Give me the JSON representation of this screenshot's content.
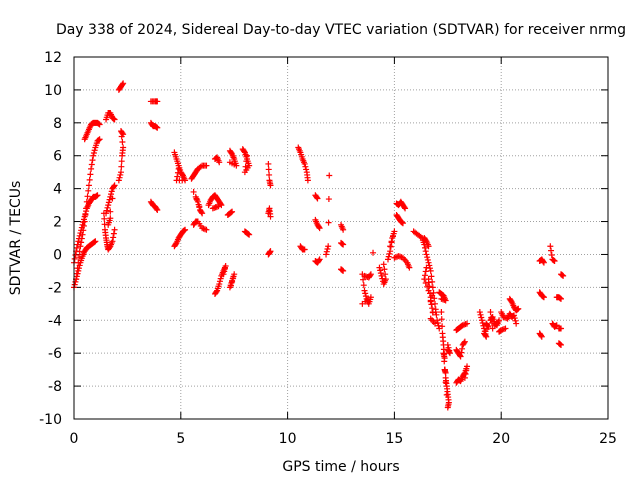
{
  "chart_data": {
    "type": "scatter",
    "title": "Day 338 of 2024, Sidereal Day-to-day VTEC variation (SDTVAR) for receiver nrmg",
    "xlabel": "GPS time / hours",
    "ylabel": "SDTVAR / TECUs",
    "xlim": [
      0,
      25
    ],
    "ylim": [
      -10,
      12
    ],
    "grid": true,
    "x_ticks": [
      0,
      5,
      10,
      15,
      20,
      25
    ],
    "y_ticks": [
      -10,
      -8,
      -6,
      -4,
      -2,
      0,
      2,
      4,
      6,
      8,
      10,
      12
    ],
    "marker": "+",
    "color": "#ff0000",
    "tracks": [
      [
        [
          0.0,
          -2.0
        ],
        [
          0.1,
          -1.5
        ],
        [
          0.2,
          -0.5
        ],
        [
          0.3,
          0.5
        ],
        [
          0.4,
          1.2
        ],
        [
          0.5,
          2.0
        ],
        [
          0.6,
          3.2
        ],
        [
          0.7,
          4.2
        ],
        [
          0.8,
          5.2
        ],
        [
          0.9,
          6.0
        ],
        [
          1.0,
          6.5
        ],
        [
          1.1,
          6.9
        ],
        [
          1.2,
          7.0
        ]
      ],
      [
        [
          0.0,
          -0.5
        ],
        [
          0.1,
          0.2
        ],
        [
          0.2,
          0.8
        ],
        [
          0.3,
          1.3
        ],
        [
          0.4,
          1.8
        ],
        [
          0.5,
          2.3
        ],
        [
          0.6,
          2.8
        ],
        [
          0.7,
          3.1
        ],
        [
          0.8,
          3.3
        ],
        [
          0.9,
          3.5
        ],
        [
          1.0,
          3.5
        ],
        [
          1.1,
          3.6
        ]
      ],
      [
        [
          0.1,
          -1.5
        ],
        [
          0.2,
          -1.0
        ],
        [
          0.3,
          -0.5
        ],
        [
          0.4,
          -0.1
        ],
        [
          0.5,
          0.2
        ],
        [
          0.6,
          0.4
        ],
        [
          0.7,
          0.5
        ],
        [
          0.8,
          0.6
        ],
        [
          0.9,
          0.7
        ],
        [
          1.0,
          0.8
        ]
      ],
      [
        [
          0.5,
          7.0
        ],
        [
          0.6,
          7.3
        ],
        [
          0.7,
          7.6
        ],
        [
          0.8,
          7.9
        ],
        [
          0.9,
          8.0
        ],
        [
          1.0,
          8.0
        ],
        [
          1.1,
          8.0
        ],
        [
          1.2,
          7.9
        ]
      ],
      [
        [
          1.4,
          2.5
        ],
        [
          1.45,
          1.5
        ],
        [
          1.5,
          1.0
        ],
        [
          1.55,
          0.6
        ],
        [
          1.6,
          0.3
        ],
        [
          1.7,
          0.5
        ],
        [
          1.8,
          0.8
        ],
        [
          1.9,
          1.5
        ]
      ],
      [
        [
          1.5,
          8.2
        ],
        [
          1.6,
          8.6
        ],
        [
          1.7,
          8.6
        ],
        [
          1.8,
          8.3
        ],
        [
          1.9,
          8.2
        ]
      ],
      [
        [
          1.5,
          2.5
        ],
        [
          1.6,
          3.0
        ],
        [
          1.7,
          3.5
        ],
        [
          1.8,
          4.0
        ],
        [
          1.9,
          4.2
        ],
        [
          1.6,
          1.8
        ],
        [
          1.7,
          2.2
        ]
      ],
      [
        [
          2.1,
          4.5
        ],
        [
          2.2,
          5.0
        ],
        [
          2.25,
          6.0
        ],
        [
          2.3,
          6.5
        ],
        [
          2.2,
          7.5
        ],
        [
          2.3,
          7.3
        ]
      ],
      [
        [
          2.1,
          10.0
        ],
        [
          2.2,
          10.2
        ],
        [
          2.3,
          10.4
        ]
      ],
      [
        [
          3.6,
          9.3
        ],
        [
          3.8,
          9.3
        ],
        [
          3.9,
          9.3
        ]
      ],
      [
        [
          3.6,
          8.0
        ],
        [
          3.7,
          7.8
        ],
        [
          3.8,
          7.8
        ],
        [
          3.9,
          7.7
        ]
      ],
      [
        [
          3.6,
          3.2
        ],
        [
          3.7,
          3.0
        ],
        [
          3.8,
          2.9
        ],
        [
          3.9,
          2.7
        ]
      ],
      [
        [
          4.7,
          6.2
        ],
        [
          4.8,
          5.8
        ],
        [
          4.9,
          5.4
        ],
        [
          5.0,
          5.0
        ],
        [
          5.1,
          4.8
        ],
        [
          5.2,
          4.5
        ],
        [
          4.8,
          4.5
        ],
        [
          4.9,
          5.2
        ]
      ],
      [
        [
          4.7,
          0.5
        ],
        [
          4.8,
          0.7
        ],
        [
          4.9,
          1.0
        ],
        [
          5.0,
          1.2
        ],
        [
          5.1,
          1.4
        ],
        [
          5.2,
          1.5
        ]
      ],
      [
        [
          5.5,
          4.6
        ],
        [
          5.6,
          4.8
        ],
        [
          5.7,
          5.0
        ],
        [
          5.8,
          5.2
        ],
        [
          6.0,
          5.4
        ],
        [
          6.2,
          5.4
        ]
      ],
      [
        [
          5.7,
          3.5
        ],
        [
          5.8,
          3.2
        ],
        [
          5.9,
          2.7
        ],
        [
          6.0,
          2.5
        ],
        [
          5.6,
          3.8
        ]
      ],
      [
        [
          5.6,
          1.8
        ],
        [
          5.7,
          2.0
        ],
        [
          5.8,
          2.0
        ],
        [
          6.0,
          1.6
        ],
        [
          6.2,
          1.5
        ]
      ],
      [
        [
          6.3,
          3.0
        ],
        [
          6.4,
          3.3
        ],
        [
          6.5,
          3.5
        ],
        [
          6.6,
          3.6
        ],
        [
          6.7,
          3.4
        ],
        [
          6.8,
          3.2
        ],
        [
          6.9,
          3.0
        ],
        [
          6.5,
          2.8
        ],
        [
          6.7,
          2.9
        ]
      ],
      [
        [
          6.6,
          5.8
        ],
        [
          6.7,
          5.9
        ],
        [
          6.8,
          5.6
        ]
      ],
      [
        [
          6.6,
          -2.4
        ],
        [
          6.7,
          -2.2
        ],
        [
          6.8,
          -1.8
        ],
        [
          6.9,
          -1.3
        ],
        [
          7.0,
          -1.0
        ],
        [
          7.1,
          -0.7
        ],
        [
          7.0,
          -1.2
        ]
      ],
      [
        [
          7.3,
          -2.0
        ],
        [
          7.4,
          -1.6
        ],
        [
          7.5,
          -1.2
        ],
        [
          7.35,
          -1.9
        ]
      ],
      [
        [
          7.3,
          6.3
        ],
        [
          7.4,
          6.1
        ],
        [
          7.5,
          5.8
        ],
        [
          7.6,
          5.4
        ],
        [
          7.3,
          5.6
        ]
      ],
      [
        [
          7.2,
          2.4
        ],
        [
          7.3,
          2.5
        ],
        [
          7.4,
          2.6
        ]
      ],
      [
        [
          7.9,
          6.4
        ],
        [
          8.0,
          6.2
        ],
        [
          8.1,
          5.8
        ],
        [
          8.2,
          5.4
        ],
        [
          8.0,
          5.0
        ],
        [
          8.1,
          6.0
        ]
      ],
      [
        [
          8.0,
          1.4
        ],
        [
          8.1,
          1.3
        ],
        [
          8.2,
          1.2
        ]
      ],
      [
        [
          9.1,
          5.5
        ],
        [
          9.15,
          4.5
        ],
        [
          9.2,
          4.2
        ]
      ],
      [
        [
          9.1,
          2.5
        ],
        [
          9.15,
          2.8
        ],
        [
          9.2,
          2.3
        ]
      ],
      [
        [
          9.1,
          0.0
        ],
        [
          9.15,
          0.1
        ],
        [
          9.2,
          0.2
        ]
      ],
      [
        [
          10.5,
          6.5
        ],
        [
          10.6,
          6.2
        ],
        [
          10.7,
          5.8
        ],
        [
          10.8,
          5.5
        ],
        [
          10.9,
          5.0
        ],
        [
          10.95,
          4.5
        ]
      ],
      [
        [
          10.6,
          0.5
        ],
        [
          10.7,
          0.3
        ],
        [
          10.8,
          0.3
        ]
      ],
      [
        [
          11.3,
          3.6
        ],
        [
          11.4,
          3.4
        ]
      ],
      [
        [
          11.3,
          2.1
        ],
        [
          11.4,
          1.8
        ],
        [
          11.5,
          1.6
        ]
      ],
      [
        [
          11.3,
          -0.4
        ],
        [
          11.4,
          -0.5
        ],
        [
          11.5,
          -0.3
        ]
      ],
      [
        [
          11.8,
          0.0
        ],
        [
          11.9,
          0.5
        ],
        [
          11.95,
          4.8
        ]
      ],
      [
        [
          12.5,
          1.8
        ],
        [
          12.6,
          1.5
        ]
      ],
      [
        [
          12.5,
          0.7
        ],
        [
          12.6,
          0.6
        ]
      ],
      [
        [
          12.5,
          -0.9
        ],
        [
          12.6,
          -1.0
        ]
      ],
      [
        [
          13.5,
          -1.2
        ],
        [
          13.6,
          -2.2
        ],
        [
          13.7,
          -2.7
        ],
        [
          13.8,
          -3.0
        ],
        [
          13.9,
          -2.6
        ],
        [
          13.5,
          -3.0
        ]
      ],
      [
        [
          13.6,
          -1.3
        ],
        [
          13.8,
          -1.4
        ],
        [
          13.9,
          -1.2
        ]
      ],
      [
        [
          14.0,
          0.1
        ]
      ],
      [
        [
          14.3,
          -0.8
        ],
        [
          14.4,
          -1.3
        ],
        [
          14.5,
          -1.8
        ],
        [
          14.6,
          -1.5
        ],
        [
          14.5,
          -0.6
        ]
      ],
      [
        [
          14.7,
          -0.3
        ],
        [
          14.8,
          0.2
        ],
        [
          14.9,
          1.0
        ],
        [
          15.0,
          1.4
        ],
        [
          14.8,
          0.5
        ]
      ],
      [
        [
          15.0,
          -0.2
        ],
        [
          15.2,
          -0.1
        ],
        [
          15.4,
          -0.2
        ],
        [
          15.6,
          -0.5
        ],
        [
          15.7,
          -0.8
        ]
      ],
      [
        [
          15.1,
          3.1
        ],
        [
          15.2,
          3.0
        ],
        [
          15.3,
          3.2
        ],
        [
          15.4,
          3.0
        ],
        [
          15.5,
          2.8
        ]
      ],
      [
        [
          15.1,
          2.4
        ],
        [
          15.2,
          2.2
        ],
        [
          15.3,
          2.0
        ],
        [
          15.4,
          1.9
        ]
      ],
      [
        [
          15.9,
          1.4
        ],
        [
          16.1,
          1.2
        ],
        [
          16.3,
          1.0
        ],
        [
          16.4,
          0.6
        ],
        [
          16.5,
          0.0
        ],
        [
          16.6,
          -0.5
        ],
        [
          16.7,
          -1.0
        ],
        [
          16.8,
          -2.0
        ],
        [
          16.9,
          -3.0
        ],
        [
          17.0,
          -4.0
        ],
        [
          17.1,
          -4.5
        ],
        [
          16.6,
          -1.5
        ],
        [
          16.7,
          -2.8
        ],
        [
          16.8,
          -3.5
        ],
        [
          16.5,
          -0.8
        ],
        [
          16.4,
          -1.5
        ],
        [
          16.6,
          -2.2
        ],
        [
          16.9,
          -4.2
        ],
        [
          16.7,
          -3.9
        ]
      ],
      [
        [
          16.4,
          1.0
        ],
        [
          16.5,
          0.8
        ],
        [
          16.6,
          0.5
        ]
      ],
      [
        [
          17.1,
          -2.3
        ],
        [
          17.2,
          -2.4
        ],
        [
          17.3,
          -2.5
        ],
        [
          17.4,
          -2.8
        ],
        [
          17.2,
          -2.7
        ]
      ],
      [
        [
          17.2,
          -3.5
        ],
        [
          17.25,
          -4.8
        ],
        [
          17.3,
          -5.5
        ],
        [
          17.35,
          -6.3
        ],
        [
          17.3,
          -6.0
        ],
        [
          17.4,
          -7.5
        ],
        [
          17.45,
          -8.0
        ],
        [
          17.5,
          -8.5
        ],
        [
          17.55,
          -9.0
        ],
        [
          17.5,
          -9.3
        ],
        [
          17.35,
          -7.0
        ],
        [
          17.4,
          -7.2
        ]
      ],
      [
        [
          17.5,
          -5.5
        ],
        [
          17.6,
          -6.0
        ],
        [
          17.5,
          -5.8
        ]
      ],
      [
        [
          17.9,
          -4.6
        ],
        [
          18.0,
          -4.5
        ],
        [
          18.1,
          -4.4
        ],
        [
          18.2,
          -4.3
        ],
        [
          18.4,
          -4.2
        ]
      ],
      [
        [
          17.9,
          -5.8
        ],
        [
          18.0,
          -6.0
        ],
        [
          18.1,
          -6.2
        ],
        [
          18.2,
          -5.5
        ],
        [
          18.3,
          -5.3
        ]
      ],
      [
        [
          17.9,
          -7.8
        ],
        [
          18.0,
          -7.6
        ],
        [
          18.1,
          -7.7
        ],
        [
          18.2,
          -7.4
        ],
        [
          18.3,
          -7.2
        ],
        [
          18.4,
          -6.8
        ],
        [
          18.3,
          -7.5
        ]
      ],
      [
        [
          19.0,
          -3.5
        ],
        [
          19.1,
          -4.0
        ],
        [
          19.2,
          -4.5
        ],
        [
          19.3,
          -5.0
        ],
        [
          19.2,
          -4.8
        ],
        [
          19.4,
          -4.4
        ],
        [
          19.3,
          -4.2
        ]
      ],
      [
        [
          19.5,
          -4.0
        ],
        [
          19.6,
          -3.8
        ],
        [
          19.7,
          -4.2
        ],
        [
          19.8,
          -4.3
        ],
        [
          19.9,
          -4.0
        ],
        [
          19.6,
          -4.5
        ],
        [
          19.5,
          -3.5
        ]
      ],
      [
        [
          19.9,
          -4.7
        ],
        [
          20.0,
          -4.6
        ],
        [
          20.2,
          -4.5
        ]
      ],
      [
        [
          20.0,
          -3.5
        ],
        [
          20.1,
          -3.8
        ],
        [
          20.3,
          -3.9
        ],
        [
          20.4,
          -3.6
        ],
        [
          20.5,
          -3.8
        ],
        [
          20.6,
          -3.7
        ],
        [
          20.7,
          -4.2
        ]
      ],
      [
        [
          20.4,
          -2.7
        ],
        [
          20.5,
          -2.9
        ],
        [
          20.6,
          -3.2
        ],
        [
          20.7,
          -3.4
        ],
        [
          20.8,
          -3.3
        ]
      ],
      [
        [
          21.8,
          -0.4
        ],
        [
          21.9,
          -0.3
        ],
        [
          22.0,
          -0.5
        ]
      ],
      [
        [
          21.8,
          -2.3
        ],
        [
          21.9,
          -2.5
        ],
        [
          22.0,
          -2.6
        ]
      ],
      [
        [
          21.8,
          -4.8
        ],
        [
          21.9,
          -5.0
        ]
      ],
      [
        [
          22.3,
          0.5
        ],
        [
          22.4,
          -0.3
        ],
        [
          22.5,
          -0.4
        ]
      ],
      [
        [
          22.4,
          -4.2
        ],
        [
          22.5,
          -4.4
        ],
        [
          22.6,
          -4.3
        ]
      ],
      [
        [
          22.6,
          -2.6
        ],
        [
          22.7,
          -2.6
        ],
        [
          22.8,
          -2.7
        ]
      ],
      [
        [
          22.7,
          -4.5
        ],
        [
          22.8,
          -4.5
        ]
      ],
      [
        [
          22.8,
          -1.2
        ],
        [
          22.9,
          -1.3
        ]
      ],
      [
        [
          22.7,
          -5.4
        ],
        [
          22.8,
          -5.5
        ]
      ]
    ]
  }
}
